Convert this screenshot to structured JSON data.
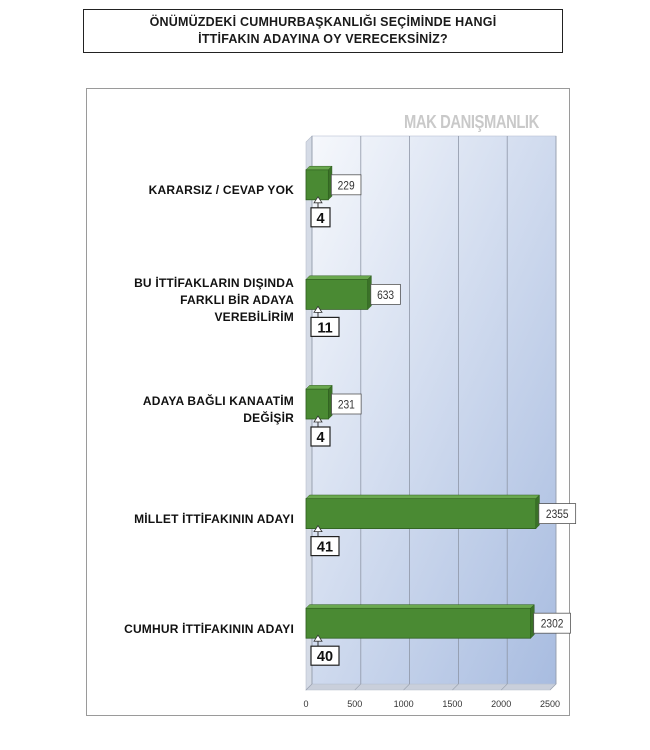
{
  "title_lines": [
    "ÖNÜMÜZDEKİ CUMHURBAŞKANLIĞI SEÇİMİNDE HANGİ",
    "İTTİFAKIN ADAYINA OY VERECEKSİNİZ?"
  ],
  "watermark": "MAK DANIŞMANLIK",
  "chart_data": {
    "type": "bar",
    "orientation": "horizontal",
    "title": "ÖNÜMÜZDEKİ CUMHURBAŞKANLIĞI SEÇİMİNDE HANGİ İTTİFAKIN ADAYINA OY VERECEKSİNİZ?",
    "categories": [
      "KARARSIZ / CEVAP YOK",
      "BU İTTİFAKLARIN DIŞINDA FARKLI BİR ADAYA VEREBİLİRİM",
      "ADAYA BAĞLI KANAATİM DEĞİŞİR",
      "MİLLET İTTİFAKININ ADAYI",
      "CUMHUR İTTİFAKININ ADAYI"
    ],
    "category_lines": [
      [
        "KARARSIZ / CEVAP YOK"
      ],
      [
        "BU İTTİFAKLARIN DIŞINDA",
        "FARKLI BİR ADAYA",
        "VEREBİLİRİM"
      ],
      [
        "ADAYA BAĞLI KANAATİM",
        "DEĞİŞİR"
      ],
      [
        "MİLLET İTTİFAKININ ADAYI"
      ],
      [
        "CUMHUR İTTİFAKININ ADAYI"
      ]
    ],
    "values": [
      229,
      633,
      231,
      2355,
      2302
    ],
    "percent_labels": [
      "4",
      "11",
      "4",
      "41",
      "40"
    ],
    "xlim": [
      0,
      2500
    ],
    "xticks": [
      "0",
      "500",
      "1000",
      "1500",
      "2000",
      "2500"
    ],
    "grid": true,
    "colors": {
      "bar": "#4a8a33",
      "bar_edge": "#2f5e1f",
      "plot_bg_top": "#f4f6fb",
      "plot_bg_bottom": "#a9bde0"
    }
  }
}
